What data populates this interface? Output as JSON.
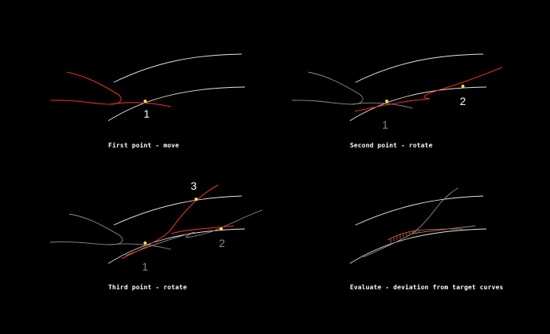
{
  "panels": [
    {
      "caption": "First point - move",
      "labels": [
        "1"
      ]
    },
    {
      "caption": "Second point - rotate",
      "labels": [
        "1",
        "2"
      ]
    },
    {
      "caption": "Third point - rotate",
      "labels": [
        "3",
        "1",
        "2"
      ]
    },
    {
      "caption": "Evaluate - deviation from target curves",
      "labels": []
    }
  ],
  "colors": {
    "target_curve": "#e6e6e6",
    "fitted_curve": "#e8321c",
    "previous_curve": "#8f8f8f",
    "point": "#ffe23a",
    "deviation_hatch": "#d9683a"
  }
}
